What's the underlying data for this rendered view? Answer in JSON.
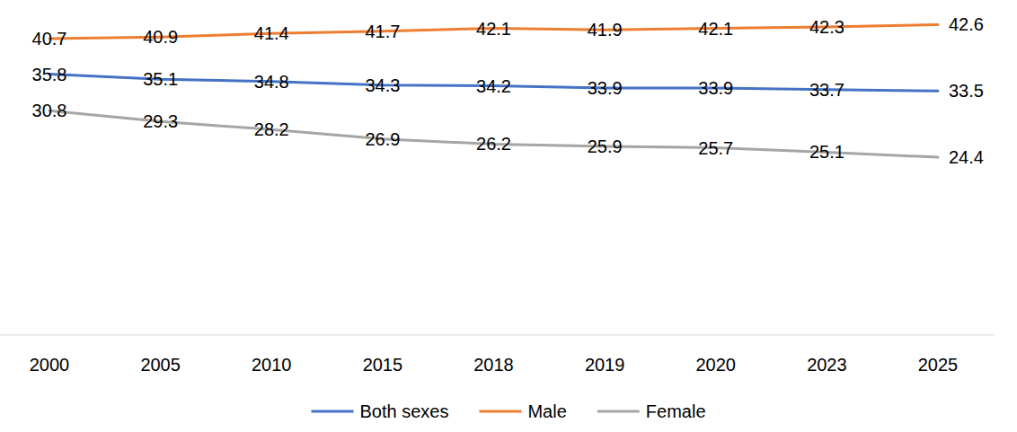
{
  "chart_data": {
    "type": "line",
    "categories": [
      "2000",
      "2005",
      "2010",
      "2015",
      "2018",
      "2019",
      "2020",
      "2023",
      "2025"
    ],
    "series": [
      {
        "name": "Both sexes",
        "color": "#4472c4",
        "values": [
          35.8,
          35.1,
          34.8,
          34.3,
          34.2,
          33.9,
          33.9,
          33.7,
          33.5
        ]
      },
      {
        "name": "Male",
        "color": "#ed7d31",
        "values": [
          40.7,
          40.9,
          41.4,
          41.7,
          42.1,
          41.9,
          42.1,
          42.3,
          42.6
        ]
      },
      {
        "name": "Female",
        "color": "#a5a5a5",
        "values": [
          30.8,
          29.3,
          28.2,
          26.9,
          26.2,
          25.9,
          25.7,
          25.1,
          24.4
        ]
      }
    ],
    "ylim": [
      0,
      45
    ],
    "data_labels": true,
    "tick_labels": "x",
    "legend": "bottom"
  }
}
